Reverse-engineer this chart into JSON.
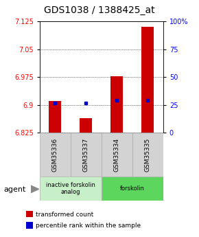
{
  "title": "GDS1038 / 1388425_at",
  "samples": [
    "GSM35336",
    "GSM35337",
    "GSM35334",
    "GSM35335"
  ],
  "red_values": [
    6.91,
    6.865,
    6.978,
    7.11
  ],
  "blue_values": [
    6.905,
    6.905,
    6.912,
    6.912
  ],
  "ymin": 6.825,
  "ymax": 7.125,
  "yticks_left": [
    6.825,
    6.9,
    6.975,
    7.05,
    7.125
  ],
  "yticks_right": [
    0,
    25,
    50,
    75,
    100
  ],
  "yticks_right_labels": [
    "0",
    "25",
    "50",
    "75",
    "100%"
  ],
  "groups": [
    {
      "label": "inactive forskolin\nanalog",
      "start": 0,
      "end": 2,
      "color": "#c8f0c8"
    },
    {
      "label": "forskolin",
      "start": 2,
      "end": 4,
      "color": "#5cd65c"
    }
  ],
  "agent_label": "agent",
  "legend": [
    {
      "color": "#cc0000",
      "label": "transformed count"
    },
    {
      "color": "#0000cc",
      "label": "percentile rank within the sample"
    }
  ],
  "bar_color": "#cc0000",
  "dot_color": "#0000cc",
  "bar_width": 0.4,
  "title_fontsize": 10
}
